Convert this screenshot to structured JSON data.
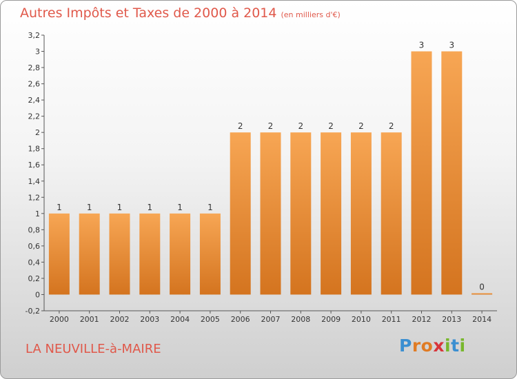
{
  "title": "Autres Impôts et Taxes de 2000 à 2014",
  "subtitle": "(en milliers d'€)",
  "commune": "LA NEUVILLE-à-MAIRE",
  "logo": {
    "text": "Proxiti",
    "colors": [
      "#3b8fd1",
      "#e07b24",
      "#e07b24",
      "#d8343a",
      "#78b72c",
      "#3b8fd1",
      "#78b72c"
    ]
  },
  "colors": {
    "bar_light": "#f7a654",
    "bar_dark": "#d4741f",
    "title": "#e0584a"
  },
  "chart_data": {
    "type": "bar",
    "categories": [
      "2000",
      "2001",
      "2002",
      "2003",
      "2004",
      "2005",
      "2006",
      "2007",
      "2008",
      "2009",
      "2010",
      "2011",
      "2012",
      "2013",
      "2014"
    ],
    "values": [
      1,
      1,
      1,
      1,
      1,
      1,
      2,
      2,
      2,
      2,
      2,
      2,
      3,
      3,
      0
    ],
    "data_labels": [
      "1",
      "1",
      "1",
      "1",
      "1",
      "1",
      "2",
      "2",
      "2",
      "2",
      "2",
      "2",
      "3",
      "3",
      "0"
    ],
    "ylim": [
      -0.2,
      3.2
    ],
    "yticks": [
      "-0,2",
      "0",
      "0,2",
      "0,4",
      "0,6",
      "0,8",
      "1",
      "1,2",
      "1,4",
      "1,6",
      "1,8",
      "2",
      "2,2",
      "2,4",
      "2,6",
      "2,8",
      "3",
      "3,2"
    ],
    "ytick_values": [
      -0.2,
      0,
      0.2,
      0.4,
      0.6,
      0.8,
      1,
      1.2,
      1.4,
      1.6,
      1.8,
      2,
      2.2,
      2.4,
      2.6,
      2.8,
      3,
      3.2
    ],
    "grid": false,
    "xlabel": "",
    "ylabel": ""
  }
}
